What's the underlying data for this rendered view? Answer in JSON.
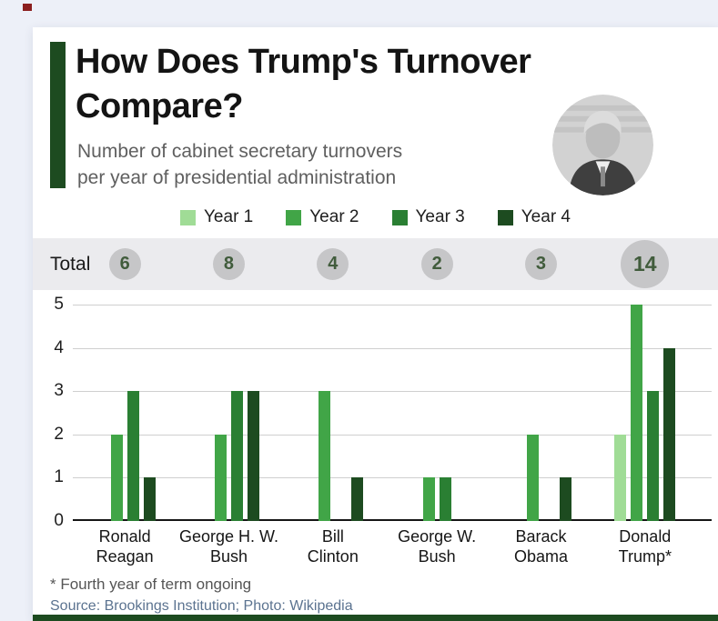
{
  "colors": {
    "accent": "#1d4b20",
    "page_bg": "#edf0f8",
    "band_bg": "#ebebee",
    "circle_bg": "#c6c6c8"
  },
  "header": {
    "title_line1": "How Does Trump's Turnover",
    "title_line2": "Compare?",
    "subtitle_line1": "Number of cabinet secretary turnovers",
    "subtitle_line2": "per year of presidential administration"
  },
  "totals": {
    "label": "Total",
    "values": [
      6,
      8,
      4,
      2,
      3,
      14
    ]
  },
  "chart_data": {
    "type": "bar",
    "title": "How Does Trump's Turnover Compare?",
    "subtitle": "Number of cabinet secretary turnovers per year of presidential administration",
    "categories": [
      "Ronald Reagan",
      "George H. W. Bush",
      "Bill Clinton",
      "George W. Bush",
      "Barack Obama",
      "Donald Trump*"
    ],
    "category_lines": [
      [
        "Ronald",
        "Reagan"
      ],
      [
        "George H. W.",
        "Bush"
      ],
      [
        "Bill",
        "Clinton"
      ],
      [
        "George W.",
        "Bush"
      ],
      [
        "Barack",
        "Obama"
      ],
      [
        "Donald",
        "Trump*"
      ]
    ],
    "series": [
      {
        "name": "Year 1",
        "color": "#a0dc96",
        "values": [
          0,
          0,
          0,
          0,
          0,
          2
        ]
      },
      {
        "name": "Year 2",
        "color": "#41a547",
        "values": [
          2,
          2,
          3,
          1,
          2,
          5
        ]
      },
      {
        "name": "Year 3",
        "color": "#2a7f33",
        "values": [
          3,
          3,
          0,
          1,
          0,
          3
        ]
      },
      {
        "name": "Year 4",
        "color": "#1d4b20",
        "values": [
          1,
          3,
          1,
          0,
          1,
          4
        ]
      }
    ],
    "totals": [
      6,
      8,
      4,
      2,
      3,
      14
    ],
    "ylim": [
      0,
      5
    ],
    "yticks": [
      0,
      1,
      2,
      3,
      4,
      5
    ],
    "grid": true,
    "legend_position": "top"
  },
  "footer": {
    "footnote": "* Fourth year of term ongoing",
    "source": "Source: Brookings Institution; Photo: Wikipedia"
  }
}
